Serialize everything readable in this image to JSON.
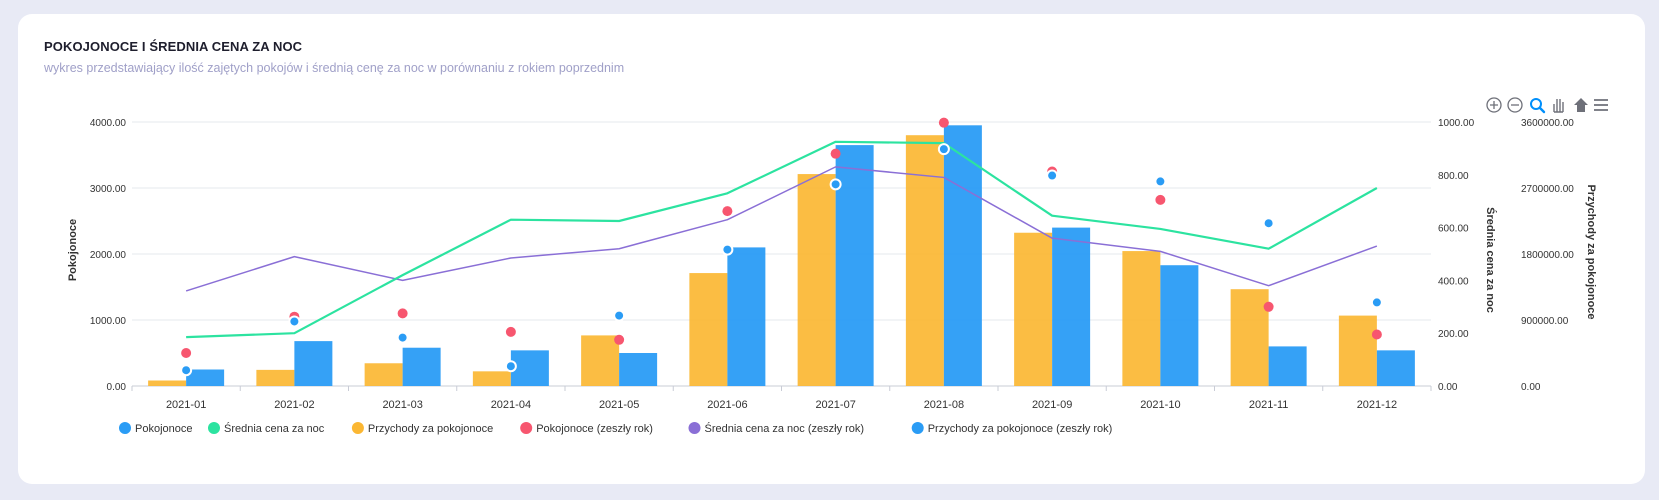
{
  "card": {
    "title": "POKOJONOCE I ŚREDNIA CENA ZA NOC",
    "subtitle": "wykres przedstawiający ilość zajętych pokojów i średnią cenę za noc w porównaniu z rokiem poprzednim"
  },
  "toolbar": {
    "icons": [
      "zoom-in-icon",
      "zoom-out-icon",
      "zoom-selection-icon",
      "pan-hand-icon",
      "home-reset-icon",
      "menu-icon"
    ]
  },
  "chart_data": {
    "type": "bar",
    "categories": [
      "2021-01",
      "2021-02",
      "2021-03",
      "2021-04",
      "2021-05",
      "2021-06",
      "2021-07",
      "2021-08",
      "2021-09",
      "2021-10",
      "2021-11",
      "2021-12"
    ],
    "axes": {
      "left": {
        "label": "Pokojonoce",
        "ticks": [
          "0.00",
          "1000.00",
          "2000.00",
          "3000.00",
          "4000.00"
        ],
        "min": 0,
        "max": 4000
      },
      "right1": {
        "label": "Średnia cena za noc",
        "ticks": [
          "0.00",
          "200.00",
          "400.00",
          "600.00",
          "800.00",
          "1000.00"
        ],
        "min": 0,
        "max": 1000
      },
      "right2": {
        "label": "Przychody za pokojonoce",
        "ticks": [
          "0.00",
          "900000.00",
          "1800000.00",
          "2700000.00",
          "3600000.00"
        ],
        "min": 0,
        "max": 3600000
      }
    },
    "series": [
      {
        "name": "Pokojonoce",
        "kind": "bar",
        "axis": "left",
        "color": "#2a9cf5",
        "values": [
          250,
          680,
          580,
          540,
          500,
          2100,
          3650,
          3950,
          2400,
          1830,
          600,
          540
        ]
      },
      {
        "name": "Średnia cena za noc",
        "kind": "line",
        "axis": "right1",
        "color": "#2ce3a0",
        "values": [
          185,
          200,
          420,
          630,
          625,
          730,
          925,
          920,
          645,
          595,
          520,
          750
        ]
      },
      {
        "name": "Przychody za pokojonoce",
        "kind": "bar",
        "axis": "right2",
        "color": "#fbb733",
        "values": [
          75000,
          220000,
          310000,
          200000,
          690000,
          1540000,
          2890000,
          3420000,
          2090000,
          1840000,
          1320000,
          960000
        ]
      },
      {
        "name": "Pokojonoce (zeszły rok)",
        "kind": "scatter",
        "axis": "left",
        "color": "#f7566f",
        "values": [
          500,
          1050,
          1100,
          820,
          700,
          2650,
          3520,
          3990,
          3250,
          2820,
          1200,
          780
        ]
      },
      {
        "name": "Średnia cena za noc (zeszły rok)",
        "kind": "line",
        "axis": "right1",
        "color": "#8a6fd6",
        "values": [
          360,
          490,
          400,
          485,
          520,
          630,
          830,
          790,
          560,
          510,
          380,
          530
        ]
      },
      {
        "name": "Przychody za pokojonoce (zeszły rok)",
        "kind": "scatter",
        "axis": "right2",
        "color": "#2a9cf5",
        "values": [
          215000,
          880000,
          660000,
          270000,
          960000,
          1860000,
          2750000,
          3230000,
          2870000,
          2790000,
          2220000,
          1140000
        ]
      }
    ],
    "legend_position": "bottom-left",
    "grid": true
  }
}
